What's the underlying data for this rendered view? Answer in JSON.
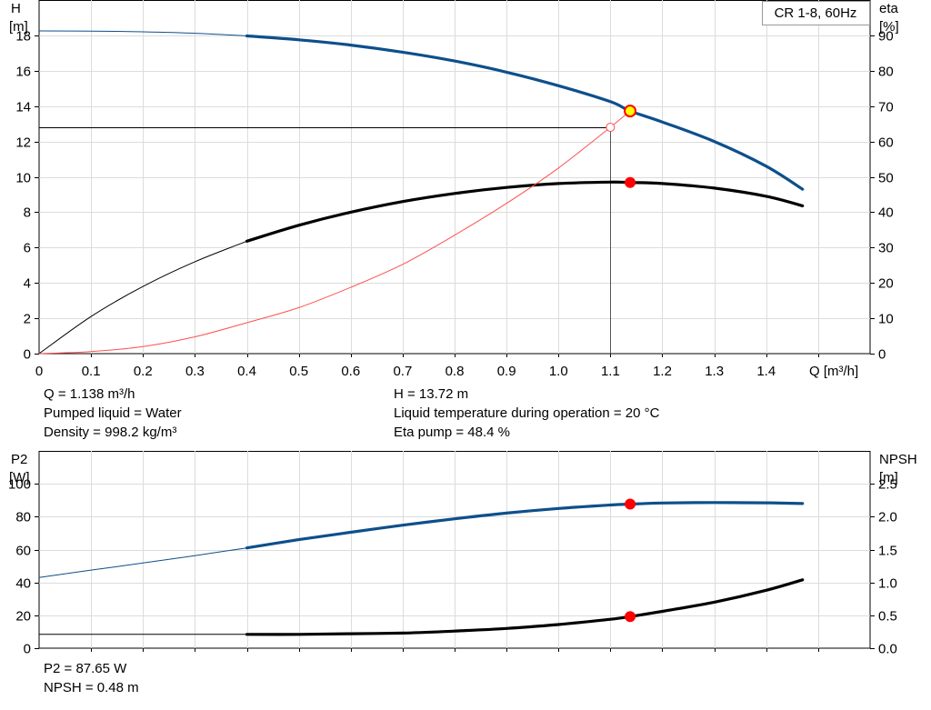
{
  "chart_data": [
    {
      "type": "line",
      "title": "CR 1-8, 60Hz",
      "xlabel": "Q [m³/h]",
      "ylabel_left": [
        "H",
        "[m]"
      ],
      "ylabel_right": [
        "eta",
        "[%]"
      ],
      "xlim": [
        0,
        1.6
      ],
      "ylim_left": [
        0,
        20
      ],
      "ylim_right": [
        0,
        100
      ],
      "x_ticks": [
        0,
        0.1,
        0.2,
        0.3,
        0.4,
        0.5,
        0.6,
        0.7,
        0.8,
        0.9,
        1.0,
        1.1,
        1.2,
        1.3,
        1.4
      ],
      "x_tick_labels": [
        "0",
        "0.1",
        "0.2",
        "0.3",
        "0.4",
        "0.5",
        "0.6",
        "0.7",
        "0.8",
        "0.9",
        "1.0",
        "1.1",
        "1.2",
        "1.3",
        "1.4"
      ],
      "y_ticks_left": [
        0,
        2,
        4,
        6,
        8,
        10,
        12,
        14,
        16,
        18
      ],
      "y_ticks_right": [
        0,
        10,
        20,
        30,
        40,
        50,
        60,
        70,
        80,
        90
      ],
      "grid": true,
      "series": [
        {
          "key": "H",
          "axis": "left",
          "color": "#0d4f8b",
          "x": [
            0,
            0.1,
            0.2,
            0.3,
            0.4,
            0.5,
            0.6,
            0.7,
            0.8,
            0.9,
            1.0,
            1.1,
            1.138,
            1.2,
            1.3,
            1.4,
            1.47
          ],
          "y": [
            18.25,
            18.24,
            18.2,
            18.12,
            17.97,
            17.75,
            17.45,
            17.05,
            16.55,
            15.92,
            15.15,
            14.25,
            13.72,
            13.1,
            12.0,
            10.6,
            9.3
          ],
          "solid_from": 0.4
        },
        {
          "key": "eta",
          "axis": "right",
          "color": "#000000",
          "x": [
            0,
            0.1,
            0.2,
            0.3,
            0.4,
            0.5,
            0.6,
            0.7,
            0.8,
            0.9,
            1.0,
            1.1,
            1.138,
            1.2,
            1.3,
            1.4,
            1.47
          ],
          "y": [
            0,
            10.5,
            19,
            26,
            31.8,
            36.3,
            40,
            43,
            45.3,
            47,
            48.1,
            48.5,
            48.4,
            48.1,
            46.8,
            44.5,
            41.8
          ],
          "solid_from": 0.4
        },
        {
          "key": "system",
          "axis": "left",
          "color": "#ff5050",
          "x": [
            0,
            0.1,
            0.2,
            0.3,
            0.4,
            0.5,
            0.6,
            0.7,
            0.8,
            0.9,
            1.0,
            1.1
          ],
          "y": [
            0,
            0.12,
            0.4,
            0.95,
            1.75,
            2.6,
            3.75,
            5.05,
            6.7,
            8.5,
            10.5,
            12.8
          ]
        }
      ],
      "operating_point": {
        "q": 1.138,
        "h": 13.72,
        "eta": 48.4
      },
      "duty_point": {
        "q": 1.1,
        "h": 12.8
      }
    },
    {
      "type": "line",
      "xlim": [
        0,
        1.6
      ],
      "ylabel_left": [
        "P2",
        "[W]"
      ],
      "ylabel_right": [
        "NPSH",
        "[m]"
      ],
      "ylim_left": [
        0,
        120
      ],
      "ylim_right": [
        0,
        3
      ],
      "y_ticks_left": [
        0,
        20,
        40,
        60,
        80,
        100
      ],
      "y_ticks_right": [
        0,
        0.5,
        1.0,
        1.5,
        2.0,
        2.5
      ],
      "y_tick_labels_right": [
        "0.0",
        "0.5",
        "1.0",
        "1.5",
        "2.0",
        "2.5"
      ],
      "grid": true,
      "series": [
        {
          "key": "P2",
          "axis": "left",
          "color": "#0d4f8b",
          "x": [
            0,
            0.1,
            0.2,
            0.3,
            0.4,
            0.5,
            0.6,
            0.7,
            0.8,
            0.9,
            1.0,
            1.1,
            1.138,
            1.2,
            1.3,
            1.4,
            1.47
          ],
          "y": [
            43,
            47.5,
            51.8,
            56.3,
            61,
            66,
            70.5,
            74.8,
            78.7,
            82.2,
            85,
            87.1,
            87.65,
            88.3,
            88.6,
            88.4,
            88
          ],
          "solid_from": 0.4
        },
        {
          "key": "NPSH",
          "axis": "right",
          "color": "#000000",
          "x": [
            0,
            0.1,
            0.2,
            0.3,
            0.4,
            0.5,
            0.6,
            0.7,
            0.8,
            0.9,
            1.0,
            1.1,
            1.138,
            1.2,
            1.3,
            1.4,
            1.47
          ],
          "y": [
            0.21,
            0.21,
            0.21,
            0.21,
            0.21,
            0.21,
            0.22,
            0.23,
            0.26,
            0.3,
            0.36,
            0.44,
            0.48,
            0.56,
            0.7,
            0.88,
            1.04
          ],
          "solid_from": 0.4
        }
      ],
      "operating_point": {
        "q": 1.138,
        "p2": 87.65,
        "npsh": 0.48
      }
    }
  ],
  "info": {
    "q": "Q = 1.138 m³/h",
    "liquid": "Pumped liquid = Water",
    "density": "Density = 998.2 kg/m³",
    "h": "H = 13.72 m",
    "temp": "Liquid temperature during operation = 20 °C",
    "eta": "Eta pump = 48.4 %",
    "p2": "P2 = 87.65 W",
    "npsh": "NPSH = 0.48 m"
  }
}
